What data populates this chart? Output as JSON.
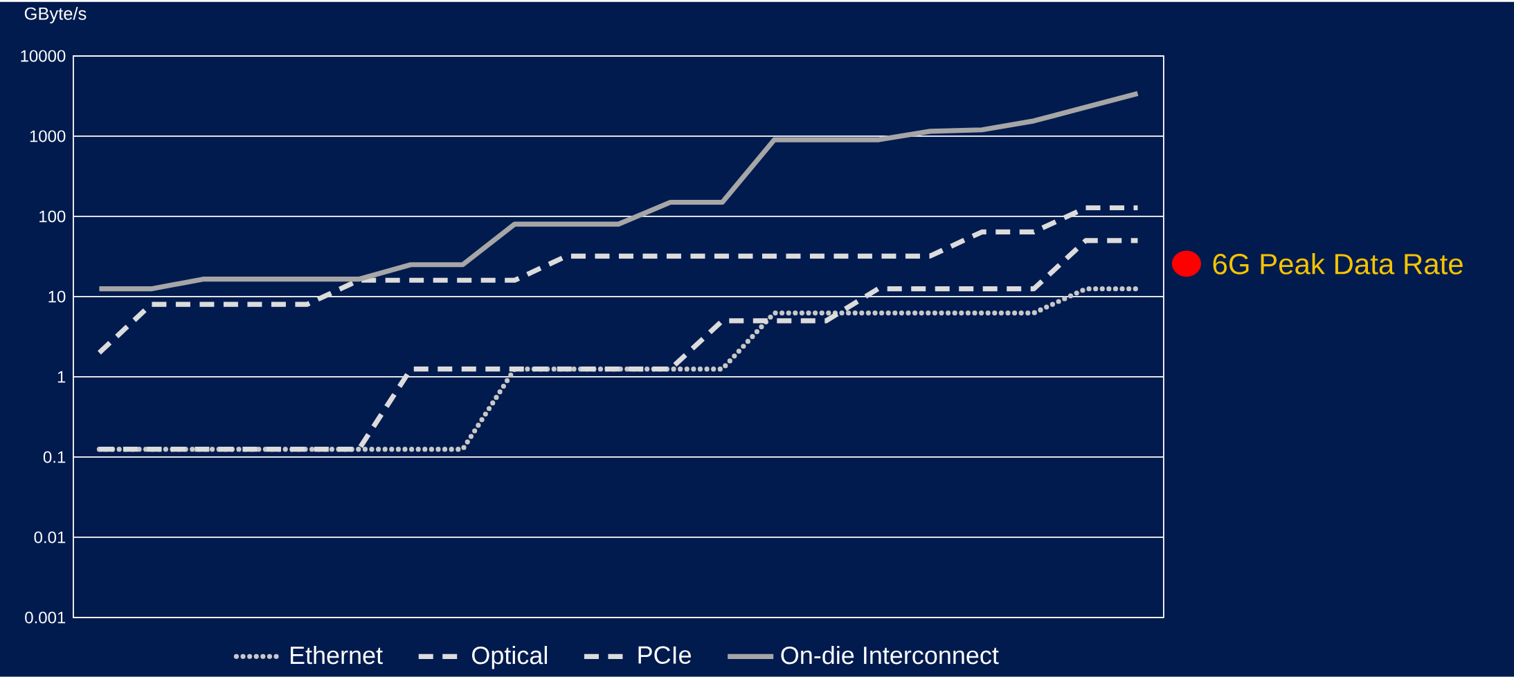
{
  "chart_data": {
    "type": "line",
    "ylabel": "GByte/s",
    "categories": [
      null,
      null,
      null,
      null,
      null,
      null,
      null,
      null,
      null,
      null,
      null,
      null,
      null,
      null,
      null,
      null,
      null,
      null,
      null,
      null,
      null
    ],
    "series": [
      {
        "name": "Ethernet",
        "color": "#c8c8c8",
        "line_style": "dotted",
        "values": [
          0.125,
          0.125,
          0.125,
          0.125,
          0.125,
          0.125,
          0.125,
          0.125,
          1.25,
          1.25,
          1.25,
          1.25,
          1.25,
          6.25,
          6.25,
          6.25,
          6.25,
          6.25,
          6.25,
          12.5,
          12.5
        ]
      },
      {
        "name": "Optical",
        "color": "#dcdcdc",
        "line_style": "dashed",
        "values": [
          0.125,
          0.125,
          0.125,
          0.125,
          0.125,
          0.125,
          1.25,
          1.25,
          1.25,
          1.25,
          1.25,
          1.25,
          5,
          5,
          5,
          12.5,
          12.5,
          12.5,
          12.5,
          50,
          50
        ]
      },
      {
        "name": "PCIe",
        "color": "#dcdcdc",
        "line_style": "dashed",
        "values": [
          2,
          8,
          8,
          8,
          8,
          16,
          16,
          16,
          16,
          32,
          32,
          32,
          32,
          32,
          32,
          32,
          32,
          64,
          64,
          128,
          128
        ]
      },
      {
        "name": "On-die Interconnect",
        "color": "#a6a6a6",
        "line_style": "solid",
        "values": [
          12.5,
          12.5,
          16.5,
          16.5,
          16.5,
          16.5,
          25,
          25,
          80,
          80,
          80,
          150,
          150,
          900,
          900,
          900,
          1150,
          1200,
          1550,
          2300,
          3400
        ]
      }
    ],
    "ylim": [
      0.001,
      10000
    ],
    "yticks": [
      0.001,
      0.01,
      0.1,
      1,
      10,
      100,
      1000,
      10000
    ],
    "log": true,
    "grid": "y",
    "legend": "bottom",
    "marker": "none",
    "annotations": [
      "6G Peak Data Rate"
    ]
  }
}
